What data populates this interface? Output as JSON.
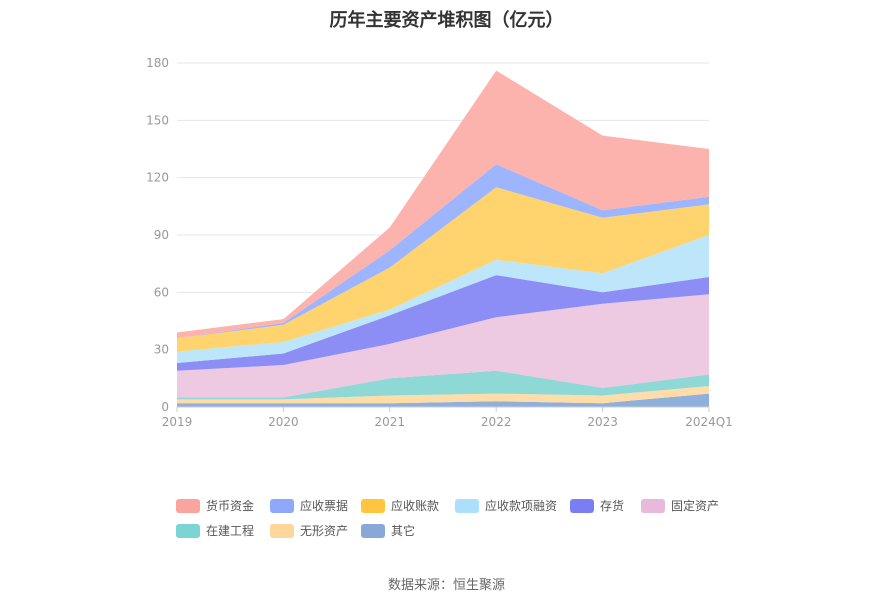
{
  "title": "历年主要资产堆积图（亿元）",
  "source": "数据来源：恒生聚源",
  "chart_data": {
    "type": "area",
    "stacked": true,
    "title": "历年主要资产堆积图（亿元）",
    "categories": [
      "2019",
      "2020",
      "2021",
      "2022",
      "2023",
      "2024Q1"
    ],
    "ylim": [
      0,
      180
    ],
    "yticks": [
      0,
      30,
      60,
      90,
      120,
      150,
      180
    ],
    "grid": true,
    "legend_position": "bottom",
    "series": [
      {
        "name": "其它",
        "color": "#8fb0dc",
        "values": [
          2,
          2,
          2,
          3,
          2,
          7
        ]
      },
      {
        "name": "无形资产",
        "color": "#ffdca8",
        "values": [
          2,
          2,
          4,
          4,
          4,
          4
        ]
      },
      {
        "name": "在建工程",
        "color": "#8ed8d6",
        "values": [
          1,
          1,
          9,
          12,
          4,
          6
        ]
      },
      {
        "name": "固定资产",
        "color": "#eec9e2",
        "values": [
          14,
          17,
          18,
          28,
          44,
          42
        ]
      },
      {
        "name": "存货",
        "color": "#8c8ef5",
        "values": [
          4,
          6,
          15,
          22,
          6,
          9
        ]
      },
      {
        "name": "应收款项融资",
        "color": "#bde6fb",
        "values": [
          6,
          6,
          3,
          8,
          10,
          22
        ]
      },
      {
        "name": "应收账款",
        "color": "#ffd46e",
        "values": [
          7,
          9,
          22,
          38,
          29,
          16
        ]
      },
      {
        "name": "应收票据",
        "color": "#9db4ff",
        "values": [
          0,
          1,
          9,
          12,
          4,
          4
        ]
      },
      {
        "name": "货币资金",
        "color": "#fdb3ad",
        "values": [
          3,
          2,
          12,
          49,
          39,
          25
        ]
      }
    ],
    "legend_order": [
      "货币资金",
      "应收票据",
      "应收账款",
      "应收款项融资",
      "存货",
      "固定资产",
      "在建工程",
      "无形资产",
      "其它"
    ],
    "legend_colors": {
      "货币资金": "#f9a49c",
      "应收票据": "#8fa8fb",
      "应收账款": "#ffc53f",
      "应收款项融资": "#abdffb",
      "存货": "#7b7ef3",
      "固定资产": "#e8b9da",
      "在建工程": "#7dd4d4",
      "无形资产": "#ffd79c",
      "其它": "#88a9d8"
    }
  }
}
